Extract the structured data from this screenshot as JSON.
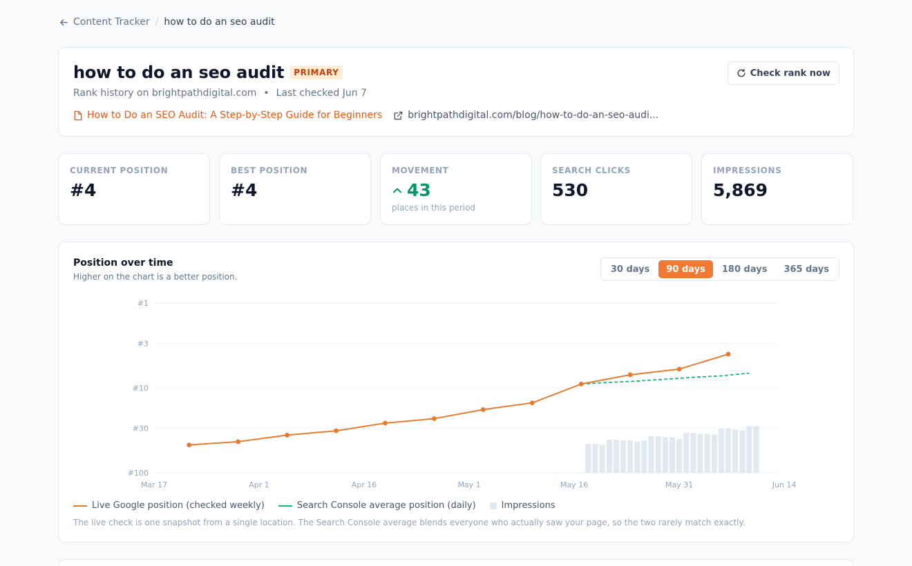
{
  "breadcrumb": {
    "parent": "Content Tracker",
    "separator": "/",
    "current": "how to do an seo audit"
  },
  "header": {
    "title": "how to do an seo audit",
    "badge": "PRIMARY",
    "subtitle_site": "Rank history on brightpathdigital.com",
    "subtitle_dot": "•",
    "subtitle_checked": "Last checked Jun 7",
    "article_link": "How to Do an SEO Audit: A Step-by-Step Guide for Beginners",
    "url_link": "brightpathdigital.com/blog/how-to-do-an-seo-audi...",
    "check_button": "Check rank now"
  },
  "stats": [
    {
      "label": "CURRENT POSITION",
      "value": "#4"
    },
    {
      "label": "BEST POSITION",
      "value": "#4"
    },
    {
      "label": "MOVEMENT",
      "value": "43",
      "note": "places in this period"
    },
    {
      "label": "SEARCH CLICKS",
      "value": "530"
    },
    {
      "label": "IMPRESSIONS",
      "value": "5,869"
    }
  ],
  "chart": {
    "title": "Position over time",
    "subtitle": "Higher on the chart is a better position.",
    "ranges": [
      "30 days",
      "90 days",
      "180 days",
      "365 days"
    ],
    "active_range": "90 days",
    "legend": {
      "live": "Live Google position (checked weekly)",
      "console": "Search Console average position (daily)",
      "impressions": "Impressions"
    },
    "note": "The live check is one snapshot from a single location. The Search Console average blends everyone who actually saw your page, so the two rarely match exactly."
  },
  "chart_data": {
    "type": "line",
    "y_scale": "log-reversed",
    "y_ticks": [
      "#1",
      "#3",
      "#10",
      "#30",
      "#100"
    ],
    "y_tick_values": [
      1,
      3,
      10,
      30,
      100
    ],
    "x_ticks": [
      "Mar 17",
      "Apr 1",
      "Apr 16",
      "May 1",
      "May 16",
      "May 31",
      "Jun 14"
    ],
    "x_range": [
      "2025-03-17",
      "2025-06-14"
    ],
    "grid": true,
    "legend_position": "bottom",
    "colors": {
      "live": "#ea7a2c",
      "console": "#10b981",
      "impressions": "#e2e8f0"
    },
    "series": [
      {
        "name": "Live Google position (checked weekly)",
        "style": "solid-markers",
        "points": [
          {
            "x": "2025-03-22",
            "y": 47
          },
          {
            "x": "2025-03-29",
            "y": 43
          },
          {
            "x": "2025-04-05",
            "y": 36
          },
          {
            "x": "2025-04-12",
            "y": 32
          },
          {
            "x": "2025-04-19",
            "y": 26
          },
          {
            "x": "2025-04-26",
            "y": 23
          },
          {
            "x": "2025-05-03",
            "y": 18
          },
          {
            "x": "2025-05-10",
            "y": 15
          },
          {
            "x": "2025-05-17",
            "y": 9
          },
          {
            "x": "2025-05-24",
            "y": 7
          },
          {
            "x": "2025-05-31",
            "y": 6
          },
          {
            "x": "2025-06-07",
            "y": 4
          }
        ]
      },
      {
        "name": "Search Console average position (daily)",
        "style": "dashed",
        "points": [
          {
            "x": "2025-05-17",
            "y": 9.0
          },
          {
            "x": "2025-05-21",
            "y": 8.6
          },
          {
            "x": "2025-05-25",
            "y": 8.3
          },
          {
            "x": "2025-05-29",
            "y": 7.9
          },
          {
            "x": "2025-06-02",
            "y": 7.5
          },
          {
            "x": "2025-06-06",
            "y": 7.2
          },
          {
            "x": "2025-06-10",
            "y": 6.7
          }
        ]
      },
      {
        "name": "Impressions",
        "style": "bars",
        "start": "2025-05-18",
        "values": [
          170,
          170,
          165,
          195,
          195,
          190,
          190,
          185,
          190,
          215,
          215,
          210,
          210,
          200,
          235,
          235,
          230,
          230,
          225,
          260,
          260,
          255,
          250,
          275,
          275
        ]
      }
    ]
  }
}
